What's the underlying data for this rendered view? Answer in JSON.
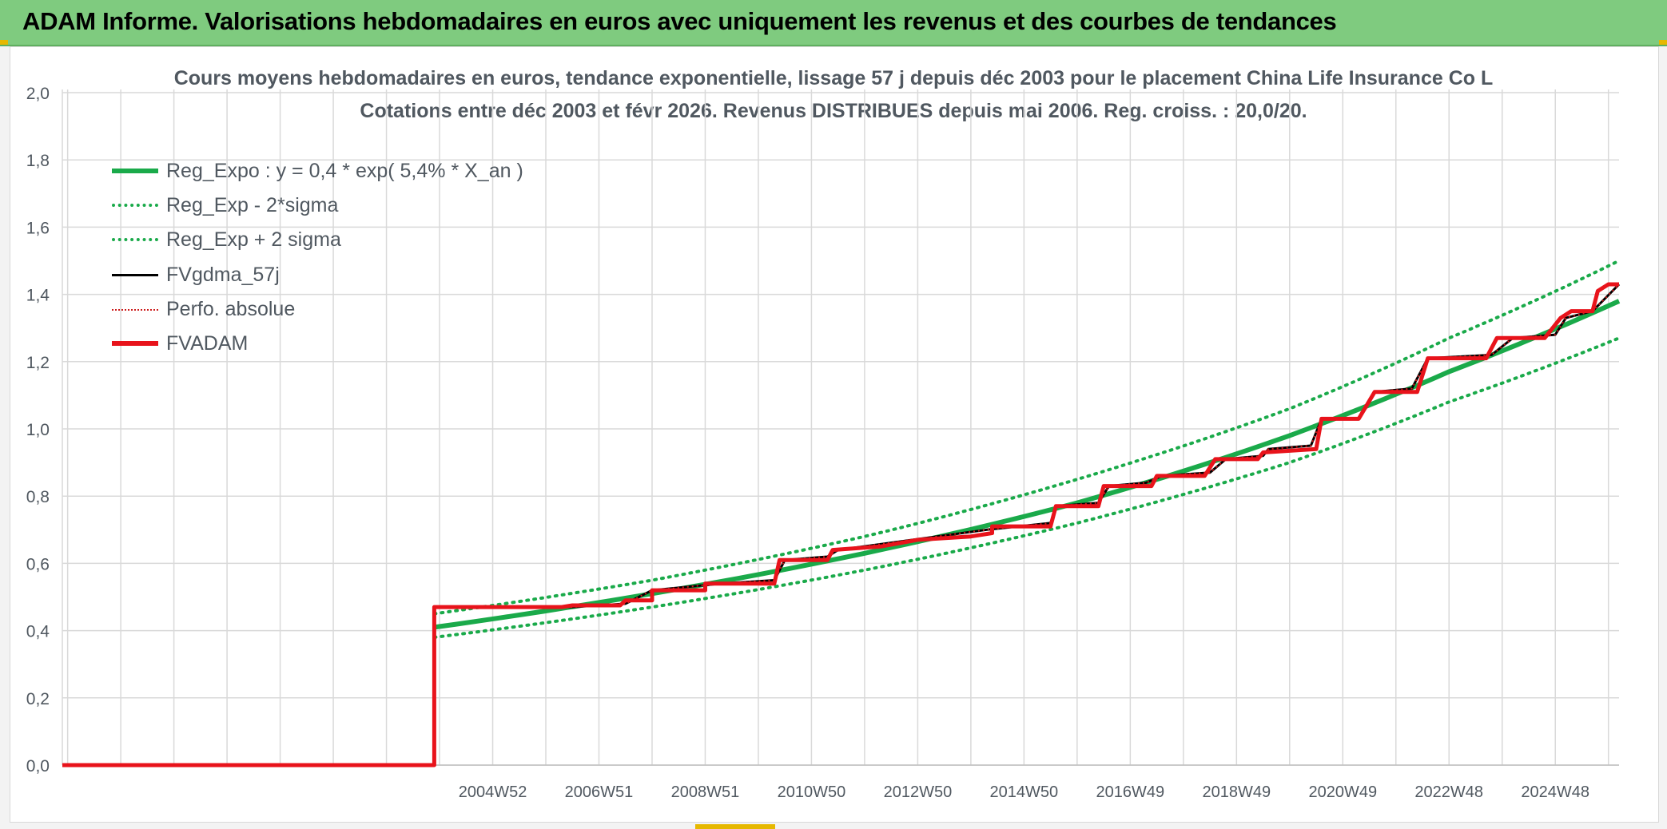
{
  "banner": {
    "title": "ADAM Informe. Valorisations hebdomadaires en euros avec uniquement les revenus et des courbes de tendances"
  },
  "colors": {
    "banner_bg": "#7fcb7f",
    "reg_expo": "#1aaa4a",
    "fv_gdma": "#000000",
    "fv_adam": "#e8131b",
    "perfo": "#cc1b1b",
    "grid": "#d9d9d9",
    "text": "#505860"
  },
  "chart_data": {
    "type": "line",
    "title": "Cours moyens hebdomadaires en euros, tendance exponentielle, lissage 57 j depuis déc 2003 pour le placement China Life Insurance Co L",
    "subtitle": "Cotations entre déc 2003 et févr 2026. Revenus DISTRIBUES depuis mai 2006. Reg. croiss. : 20,0/20.",
    "xlabel": "",
    "ylabel": "",
    "ylim": [
      0,
      2
    ],
    "yticks": [
      "0,0",
      "0,2",
      "0,4",
      "0,6",
      "0,8",
      "1,0",
      "1,2",
      "1,4",
      "1,6",
      "1,8",
      "2,0"
    ],
    "xlim": [
      1996.9,
      2026.2
    ],
    "xticks": [
      {
        "label": "2004W52",
        "x": 2005.0
      },
      {
        "label": "2006W51",
        "x": 2007.0
      },
      {
        "label": "2008W51",
        "x": 2009.0
      },
      {
        "label": "2010W50",
        "x": 2011.0
      },
      {
        "label": "2012W50",
        "x": 2013.0
      },
      {
        "label": "2014W50",
        "x": 2015.0
      },
      {
        "label": "2016W49",
        "x": 2017.0
      },
      {
        "label": "2018W49",
        "x": 2019.0
      },
      {
        "label": "2020W49",
        "x": 2021.0
      },
      {
        "label": "2022W48",
        "x": 2023.0
      },
      {
        "label": "2024W48",
        "x": 2025.0
      }
    ],
    "grid": true,
    "legend_position": "top-left",
    "series": [
      {
        "name": "Reg_Expo : y = 0,4 * exp( 5,4% *  X_an )",
        "style": "solid-thick",
        "points": [
          [
            2003.9,
            0.41
          ],
          [
            2008,
            0.51
          ],
          [
            2012,
            0.63
          ],
          [
            2016,
            0.78
          ],
          [
            2020,
            0.98
          ],
          [
            2023,
            1.17
          ],
          [
            2026.2,
            1.38
          ]
        ]
      },
      {
        "name": "Reg_Exp - 2*sigma",
        "style": "dotted",
        "points": [
          [
            2003.9,
            0.38
          ],
          [
            2008,
            0.47
          ],
          [
            2012,
            0.58
          ],
          [
            2016,
            0.72
          ],
          [
            2020,
            0.9
          ],
          [
            2023,
            1.08
          ],
          [
            2026.2,
            1.27
          ]
        ]
      },
      {
        "name": "Reg_Exp + 2 sigma",
        "style": "dotted",
        "points": [
          [
            2003.9,
            0.45
          ],
          [
            2008,
            0.55
          ],
          [
            2012,
            0.68
          ],
          [
            2016,
            0.85
          ],
          [
            2020,
            1.06
          ],
          [
            2023,
            1.27
          ],
          [
            2026.2,
            1.5
          ]
        ]
      },
      {
        "name": "FVgdma_57j",
        "style": "solid",
        "points": [
          [
            1996.9,
            0
          ],
          [
            2003.9,
            0
          ],
          [
            2003.9,
            0.47
          ],
          [
            2006.5,
            0.47
          ],
          [
            2007.5,
            0.48
          ],
          [
            2008.0,
            0.52
          ],
          [
            2009.3,
            0.54
          ],
          [
            2010.3,
            0.55
          ],
          [
            2010.5,
            0.61
          ],
          [
            2011.3,
            0.62
          ],
          [
            2011.5,
            0.64
          ],
          [
            2014.3,
            0.7
          ],
          [
            2015.5,
            0.72
          ],
          [
            2015.6,
            0.77
          ],
          [
            2016.4,
            0.78
          ],
          [
            2016.6,
            0.83
          ],
          [
            2017.3,
            0.84
          ],
          [
            2017.6,
            0.86
          ],
          [
            2018.5,
            0.87
          ],
          [
            2018.8,
            0.91
          ],
          [
            2019.5,
            0.92
          ],
          [
            2019.6,
            0.94
          ],
          [
            2020.4,
            0.95
          ],
          [
            2020.6,
            1.03
          ],
          [
            2021.3,
            1.03
          ],
          [
            2021.6,
            1.11
          ],
          [
            2022.3,
            1.12
          ],
          [
            2022.6,
            1.21
          ],
          [
            2023.8,
            1.22
          ],
          [
            2024.2,
            1.27
          ],
          [
            2025.0,
            1.28
          ],
          [
            2025.2,
            1.33
          ],
          [
            2025.7,
            1.35
          ],
          [
            2026.2,
            1.43
          ]
        ]
      },
      {
        "name": "Perfo. absolue",
        "style": "dotted-thin",
        "points": [
          [
            1996.9,
            0
          ],
          [
            2003.9,
            0
          ],
          [
            2003.9,
            0.47
          ],
          [
            2006.5,
            0.47
          ],
          [
            2007.5,
            0.48
          ],
          [
            2008.0,
            0.52
          ],
          [
            2009.3,
            0.54
          ],
          [
            2010.3,
            0.55
          ],
          [
            2010.5,
            0.61
          ],
          [
            2011.3,
            0.62
          ],
          [
            2011.5,
            0.64
          ],
          [
            2014.3,
            0.7
          ],
          [
            2015.5,
            0.72
          ],
          [
            2015.6,
            0.77
          ],
          [
            2016.4,
            0.78
          ],
          [
            2016.6,
            0.83
          ],
          [
            2017.3,
            0.84
          ],
          [
            2017.6,
            0.86
          ],
          [
            2018.5,
            0.87
          ],
          [
            2018.8,
            0.91
          ],
          [
            2019.5,
            0.92
          ],
          [
            2019.6,
            0.94
          ],
          [
            2020.4,
            0.95
          ],
          [
            2020.6,
            1.03
          ],
          [
            2021.3,
            1.03
          ],
          [
            2021.6,
            1.11
          ],
          [
            2022.3,
            1.12
          ],
          [
            2022.6,
            1.21
          ],
          [
            2023.8,
            1.22
          ],
          [
            2024.2,
            1.27
          ],
          [
            2025.0,
            1.28
          ],
          [
            2025.2,
            1.33
          ],
          [
            2025.7,
            1.35
          ],
          [
            2026.2,
            1.43
          ]
        ]
      },
      {
        "name": "FVADAM",
        "style": "solid-thick",
        "points": [
          [
            1996.9,
            0
          ],
          [
            2003.9,
            0
          ],
          [
            2003.9,
            0.47
          ],
          [
            2006.3,
            0.47
          ],
          [
            2006.5,
            0.475
          ],
          [
            2007.4,
            0.475
          ],
          [
            2007.5,
            0.49
          ],
          [
            2008.0,
            0.49
          ],
          [
            2008.0,
            0.52
          ],
          [
            2009.0,
            0.52
          ],
          [
            2009.0,
            0.54
          ],
          [
            2010.3,
            0.54
          ],
          [
            2010.4,
            0.61
          ],
          [
            2011.3,
            0.61
          ],
          [
            2011.4,
            0.64
          ],
          [
            2012.3,
            0.65
          ],
          [
            2013.0,
            0.67
          ],
          [
            2014.0,
            0.68
          ],
          [
            2014.4,
            0.69
          ],
          [
            2014.4,
            0.71
          ],
          [
            2015.5,
            0.71
          ],
          [
            2015.6,
            0.77
          ],
          [
            2016.4,
            0.77
          ],
          [
            2016.5,
            0.83
          ],
          [
            2017.4,
            0.83
          ],
          [
            2017.5,
            0.86
          ],
          [
            2018.4,
            0.86
          ],
          [
            2018.6,
            0.91
          ],
          [
            2019.4,
            0.91
          ],
          [
            2019.5,
            0.93
          ],
          [
            2020.5,
            0.94
          ],
          [
            2020.6,
            1.03
          ],
          [
            2021.3,
            1.03
          ],
          [
            2021.6,
            1.11
          ],
          [
            2022.4,
            1.11
          ],
          [
            2022.6,
            1.21
          ],
          [
            2023.7,
            1.21
          ],
          [
            2023.9,
            1.27
          ],
          [
            2024.8,
            1.27
          ],
          [
            2025.1,
            1.33
          ],
          [
            2025.3,
            1.35
          ],
          [
            2025.7,
            1.35
          ],
          [
            2025.8,
            1.41
          ],
          [
            2026.0,
            1.43
          ],
          [
            2026.2,
            1.43
          ]
        ]
      }
    ]
  },
  "legend": {
    "items": [
      {
        "label": "Reg_Expo : y = 0,4 * exp( 5,4% *  X_an )"
      },
      {
        "label": "Reg_Exp - 2*sigma"
      },
      {
        "label": "Reg_Exp + 2 sigma"
      },
      {
        "label": "FVgdma_57j"
      },
      {
        "label": "Perfo. absolue"
      },
      {
        "label": "FVADAM"
      }
    ]
  }
}
